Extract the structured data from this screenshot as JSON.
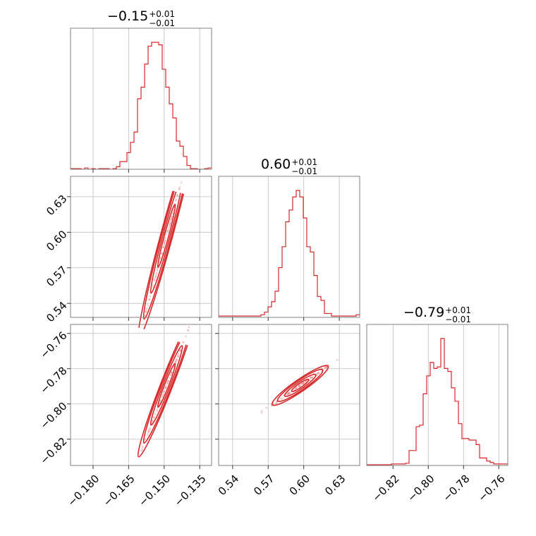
{
  "chart_data": {
    "type": "corner",
    "parameters": [
      {
        "title": {
          "median": "−0.15",
          "plus": "+0.01",
          "minus": "−0.01"
        },
        "range": [
          -0.1895,
          -0.13
        ],
        "ticks": [
          -0.18,
          -0.165,
          -0.15,
          -0.135
        ],
        "tick_labels": [
          "−0.180",
          "−0.165",
          "−0.150",
          "−0.135"
        ],
        "grid": [
          -0.18,
          -0.165,
          -0.15,
          -0.135
        ],
        "hist_values": [
          0.5,
          0.5,
          0.5,
          0,
          1,
          0,
          0.5,
          0,
          0.5,
          0.5,
          0.5,
          0,
          0.5,
          2,
          6,
          6,
          13,
          21,
          29,
          55,
          64,
          82,
          96,
          99,
          99,
          97,
          78,
          64,
          51,
          40,
          22,
          18,
          10,
          3,
          0.5,
          0.5,
          0,
          0,
          0.5,
          1
        ]
      },
      {
        "title": {
          "median": "0.60",
          "plus": "+0.01",
          "minus": "−0.01"
        },
        "range": [
          0.5282,
          0.6472
        ],
        "ticks": [
          0.54,
          0.57,
          0.6,
          0.63
        ],
        "tick_labels": [
          "0.54",
          "0.57",
          "0.60",
          "0.63"
        ],
        "grid": [
          0.54,
          0.57,
          0.6,
          0.63
        ],
        "hist_values": [
          1,
          1,
          1,
          1,
          1,
          1,
          1,
          1,
          1,
          1,
          1,
          1,
          2,
          4,
          8,
          12,
          20,
          38,
          54,
          73,
          82,
          92,
          97,
          92,
          76,
          54,
          50,
          32,
          16,
          13,
          3,
          3,
          1,
          1,
          1,
          1,
          1,
          1,
          1,
          2
        ]
      },
      {
        "title": {
          "median": "−0.79",
          "plus": "+0.01",
          "minus": "−0.01"
        },
        "range": [
          -0.8349,
          -0.7549
        ],
        "ticks": [
          -0.82,
          -0.8,
          -0.78,
          -0.76
        ],
        "tick_labels": [
          "−0.82",
          "−0.80",
          "−0.78",
          "−0.76"
        ],
        "grid": [
          -0.82,
          -0.8,
          -0.78,
          -0.76
        ],
        "hist_values": [
          0.5,
          0.5,
          0.5,
          0.5,
          0.5,
          0.5,
          0.5,
          1,
          1,
          1,
          1,
          1.5,
          10,
          10,
          26,
          27,
          48,
          60,
          69,
          65,
          66,
          85,
          65,
          63,
          52,
          43,
          28,
          18,
          18,
          17,
          17,
          14,
          5,
          5,
          3,
          2,
          1,
          1,
          1,
          1
        ]
      }
    ],
    "correlations": {
      "p1_p0_slope": 7.4,
      "p2_p0_slope": 3.44,
      "p2_p1_slope": 0.465,
      "centers": [
        -0.149,
        0.597,
        -0.7895
      ]
    },
    "color": "#d62728",
    "grid": true
  }
}
